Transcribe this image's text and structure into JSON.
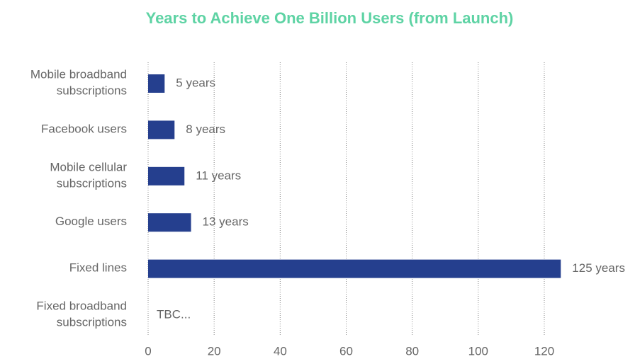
{
  "chart_data": {
    "type": "bar",
    "orientation": "horizontal",
    "title": "Years to Achieve One Billion Users (from Launch)",
    "categories": [
      "Mobile broadband subscriptions",
      "Facebook users",
      "Mobile cellular subscriptions",
      "Google users",
      "Fixed lines",
      "Fixed broadband subscriptions"
    ],
    "values": [
      5,
      8,
      11,
      13,
      125,
      null
    ],
    "value_labels": [
      "5 years",
      "8 years",
      "11 years",
      "13 years",
      "125 years",
      "TBC..."
    ],
    "color": "#253f8e",
    "xlim": [
      0,
      125
    ],
    "xticks": [
      0,
      20,
      40,
      60,
      80,
      100,
      120
    ],
    "grid": true
  }
}
